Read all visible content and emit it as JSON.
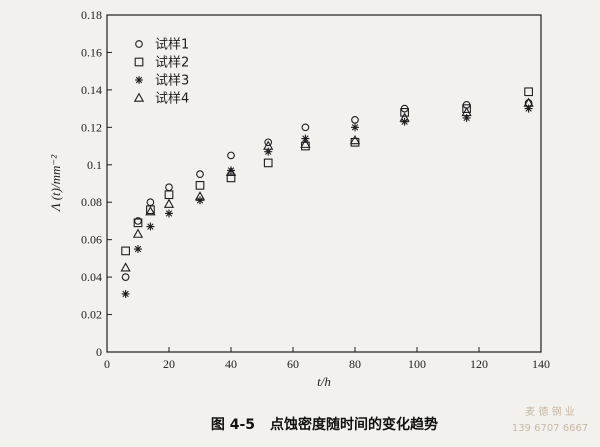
{
  "caption": {
    "label": "图 4-5",
    "title": "点蚀密度随时间的变化趋势"
  },
  "watermark": {
    "line1": "麦 德 钢 业",
    "line2": "139 6707 6667"
  },
  "chart_data": {
    "type": "scatter",
    "xlabel": "t/h",
    "ylabel": "Λ (t)/mm⁻²",
    "xlim": [
      0,
      140
    ],
    "ylim": [
      0,
      0.18
    ],
    "xticks": [
      0,
      20,
      40,
      60,
      80,
      100,
      120,
      140
    ],
    "yticks": [
      0,
      0.02,
      0.04,
      0.06,
      0.08,
      0.1,
      0.12,
      0.14,
      0.16,
      0.18
    ],
    "ytick_labels": [
      "0",
      "0.02",
      "0.04",
      "0.06",
      "0.08",
      "0.1",
      "0.12",
      "0.14",
      "0.16",
      "0.18"
    ],
    "grid": false,
    "legend_position": "top-left",
    "series": [
      {
        "name": "试样1",
        "marker": "circle",
        "x": [
          6,
          10,
          14,
          20,
          30,
          40,
          52,
          64,
          80,
          96,
          116,
          136
        ],
        "y": [
          0.04,
          0.07,
          0.08,
          0.088,
          0.095,
          0.105,
          0.112,
          0.12,
          0.124,
          0.13,
          0.132,
          0.133
        ]
      },
      {
        "name": "试样2",
        "marker": "square",
        "x": [
          6,
          10,
          14,
          20,
          30,
          40,
          52,
          64,
          80,
          96,
          116,
          136
        ],
        "y": [
          0.054,
          0.069,
          0.076,
          0.084,
          0.089,
          0.093,
          0.101,
          0.11,
          0.112,
          0.128,
          0.13,
          0.139
        ]
      },
      {
        "name": "试样3",
        "marker": "asterisk",
        "x": [
          6,
          10,
          14,
          20,
          30,
          40,
          52,
          64,
          80,
          96,
          116,
          136
        ],
        "y": [
          0.031,
          0.055,
          0.067,
          0.074,
          0.081,
          0.097,
          0.107,
          0.114,
          0.12,
          0.123,
          0.125,
          0.13
        ]
      },
      {
        "name": "试样4",
        "marker": "triangle",
        "x": [
          6,
          10,
          14,
          20,
          30,
          40,
          52,
          64,
          80,
          96,
          116,
          136
        ],
        "y": [
          0.045,
          0.063,
          0.075,
          0.079,
          0.083,
          0.096,
          0.11,
          0.111,
          0.113,
          0.125,
          0.128,
          0.133
        ]
      }
    ]
  }
}
